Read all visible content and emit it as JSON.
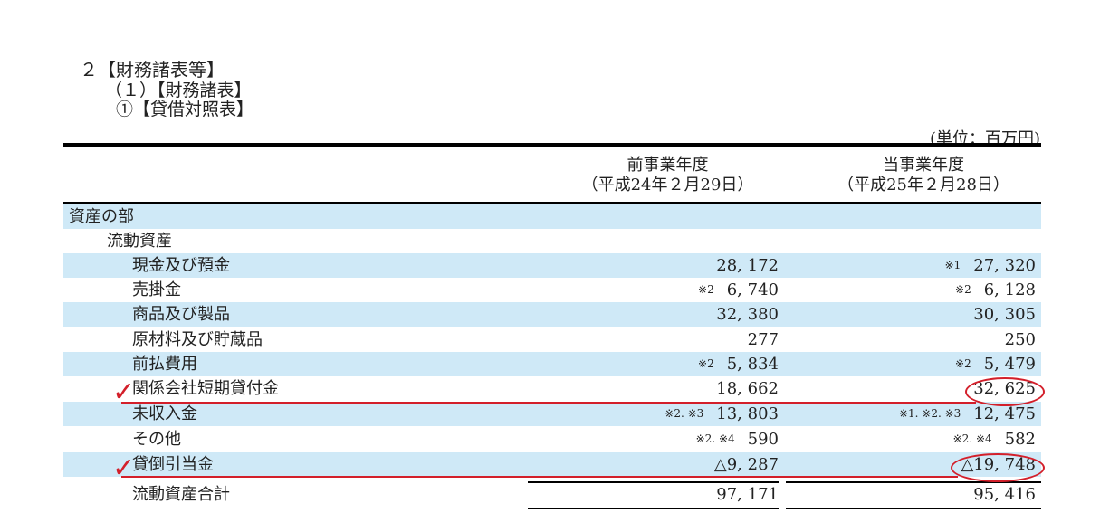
{
  "heading": {
    "section": "２【財務諸表等】",
    "subsection": "（１）【財務諸表】",
    "statement": "①【貸借対照表】"
  },
  "unit_label": "(単位：百万円)",
  "columns": {
    "prev": {
      "line1": "前事業年度",
      "line2": "（平成24年２月29日）"
    },
    "curr": {
      "line1": "当事業年度",
      "line2": "（平成25年２月28日）"
    }
  },
  "rows": [
    {
      "label": "資産の部",
      "prev_note": "",
      "prev": "",
      "curr_note": "",
      "curr": ""
    },
    {
      "label": "流動資産",
      "prev_note": "",
      "prev": "",
      "curr_note": "",
      "curr": ""
    },
    {
      "label": "現金及び預金",
      "prev_note": "",
      "prev": "28, 172",
      "curr_note": "※1",
      "curr": "27, 320"
    },
    {
      "label": "売掛金",
      "prev_note": "※2",
      "prev": "6, 740",
      "curr_note": "※2",
      "curr": "6, 128"
    },
    {
      "label": "商品及び製品",
      "prev_note": "",
      "prev": "32, 380",
      "curr_note": "",
      "curr": "30, 305"
    },
    {
      "label": "原材料及び貯蔵品",
      "prev_note": "",
      "prev": "277",
      "curr_note": "",
      "curr": "250"
    },
    {
      "label": "前払費用",
      "prev_note": "※2",
      "prev": "5, 834",
      "curr_note": "※2",
      "curr": "5, 479"
    },
    {
      "label": "関係会社短期貸付金",
      "prev_note": "",
      "prev": "18, 662",
      "curr_note": "",
      "curr": "32, 625"
    },
    {
      "label": "未収入金",
      "prev_note": "※2. ※3",
      "prev": "13, 803",
      "curr_note": "※1. ※2. ※3",
      "curr": "12, 475"
    },
    {
      "label": "その他",
      "prev_note": "※2. ※4",
      "prev": "590",
      "curr_note": "※2. ※4",
      "curr": "582"
    },
    {
      "label": "貸倒引当金",
      "prev_note": "",
      "prev": "△9, 287",
      "curr_note": "",
      "curr": "△19, 748"
    },
    {
      "label": "流動資産合計",
      "prev_note": "",
      "prev": "97, 171",
      "curr_note": "",
      "curr": "95, 416"
    }
  ],
  "annotations": {
    "mark_color": "#d31f2a",
    "shade_color": "#cfe9f7"
  }
}
